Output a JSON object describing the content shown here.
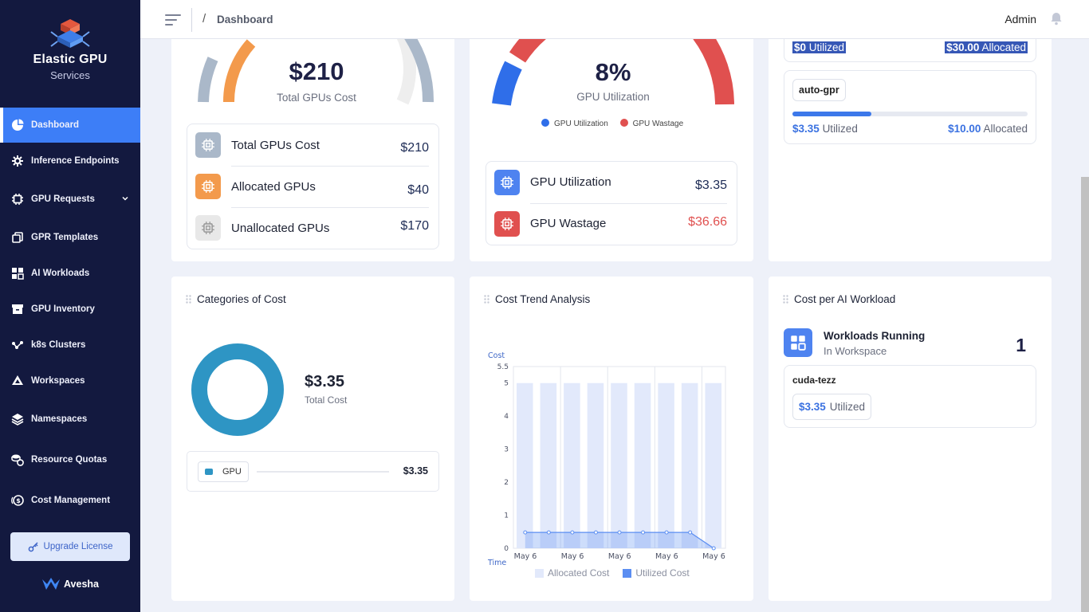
{
  "brand": {
    "title": "Elastic GPU",
    "subtitle": "Services"
  },
  "nav": {
    "items": [
      {
        "label": "Dashboard",
        "icon": "pie-chart-icon",
        "active": true
      },
      {
        "label": "Inference Endpoints",
        "icon": "gear-network-icon"
      },
      {
        "label": "GPU Requests",
        "icon": "chip-icon"
      },
      {
        "label": "GPR Templates",
        "icon": "copy-icon"
      },
      {
        "label": "AI Workloads",
        "icon": "grid-icon"
      },
      {
        "label": "GPU Inventory",
        "icon": "inbox-icon"
      },
      {
        "label": "k8s Clusters",
        "icon": "cluster-icon"
      },
      {
        "label": "Workspaces",
        "icon": "cube-icon"
      },
      {
        "label": "Namespaces",
        "icon": "layers-icon"
      },
      {
        "label": "Resource Quotas",
        "icon": "coins-icon"
      },
      {
        "label": "Cost Management",
        "icon": "money-icon"
      }
    ],
    "upgrade_label": "Upgrade License",
    "footer_brand": "Avesha"
  },
  "topbar": {
    "breadcrumb_sep": "/",
    "breadcrumb": "Dashboard",
    "user": "Admin"
  },
  "cost_card": {
    "value": "$210",
    "caption": "Total GPUs Cost",
    "rows": [
      {
        "label": "Total GPUs Cost",
        "value": "$210",
        "color": "#aab8c9"
      },
      {
        "label": "Allocated GPUs",
        "value": "$40",
        "color": "#f39a4c"
      },
      {
        "label": "Unallocated GPUs",
        "value": "$170",
        "color": "#e8e8e8"
      }
    ]
  },
  "util_card": {
    "value": "8%",
    "caption": "GPU Utilization",
    "utilization_fraction": 0.08,
    "legend": [
      {
        "label": "GPU Utilization",
        "color": "#2f6ee9"
      },
      {
        "label": "GPU Wastage",
        "color": "#e0504f"
      }
    ],
    "rows": [
      {
        "label": "GPU Utilization",
        "value": "$3.35",
        "color": "#4e83f0"
      },
      {
        "label": "GPU Wastage",
        "value": "$36.66",
        "color": "#e0504f"
      }
    ]
  },
  "gpr_card": {
    "first": {
      "utilized_value": "$0",
      "utilized_label": "Utilized",
      "allocated_value": "$30.00",
      "allocated_label": "Allocated"
    },
    "second": {
      "name": "auto-gpr",
      "utilized_value": "$3.35",
      "utilized_label": "Utilized",
      "allocated_value": "$10.00",
      "allocated_label": "Allocated",
      "fraction": 0.335
    }
  },
  "categories_card": {
    "title": "Categories of Cost",
    "total_value": "$3.35",
    "total_caption": "Total Cost",
    "legend": {
      "label": "GPU",
      "value": "$3.35",
      "color": "#2e95c4"
    }
  },
  "trend_card": {
    "title": "Cost Trend Analysis",
    "legend_allocated": "Allocated Cost",
    "legend_utilized": "Utilized Cost"
  },
  "chart_data": {
    "type": "bar",
    "title": "Cost Trend Analysis",
    "ylabel": "Cost",
    "xlabel": "Time",
    "ylim": [
      0,
      5.5
    ],
    "yticks": [
      "0",
      "1",
      "2",
      "3",
      "4",
      "5",
      "5.5"
    ],
    "xticks": [
      "May 6",
      "May 6",
      "May 6",
      "May 6",
      "May 6"
    ],
    "categories": [
      "May 6",
      "May 6",
      "May 6",
      "May 6",
      "May 6",
      "May 6",
      "May 6",
      "May 6",
      "May 6"
    ],
    "series": [
      {
        "name": "Allocated Cost",
        "type": "bar",
        "values": [
          5,
          5,
          5,
          5,
          5,
          5,
          5,
          5,
          5
        ],
        "color": "#e2e9fb"
      },
      {
        "name": "Utilized Cost",
        "type": "area",
        "values": [
          0.48,
          0.48,
          0.48,
          0.48,
          0.48,
          0.48,
          0.48,
          0.48,
          0.0
        ],
        "color": "#5b8ef2"
      }
    ],
    "grid": true,
    "legend": "bottom"
  },
  "workload_card": {
    "title": "Cost per AI Workload",
    "running_title": "Workloads Running",
    "running_sub": "In Workspace",
    "running_count": "1",
    "item_name": "cuda-tezz",
    "item_value": "$3.35",
    "item_label": "Utilized"
  }
}
